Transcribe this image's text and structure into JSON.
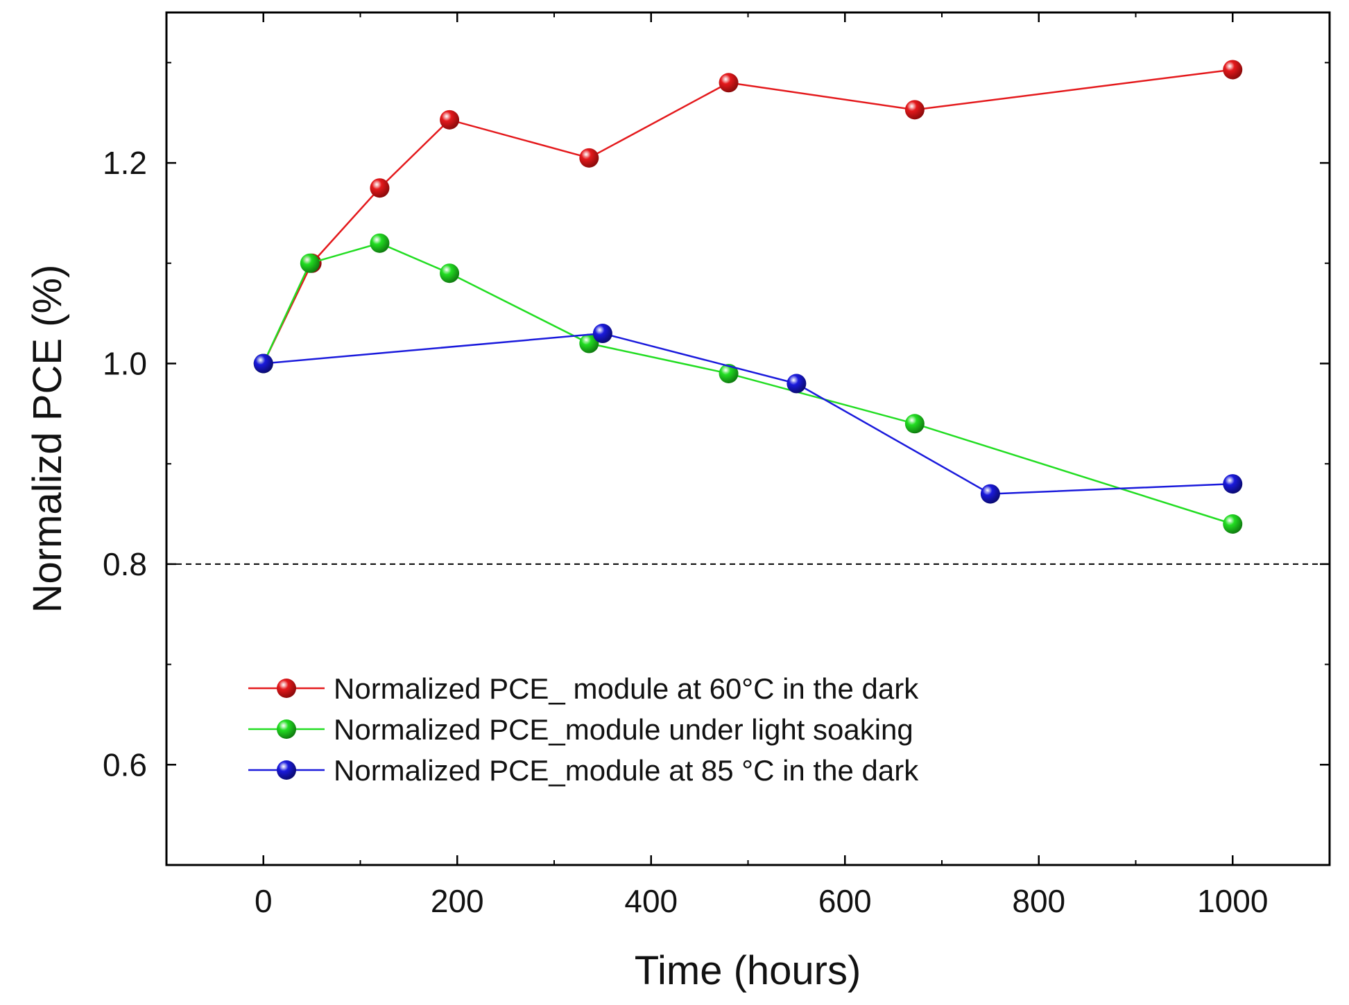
{
  "chart_data": {
    "type": "line",
    "title": "",
    "xlabel": "Time (hours)",
    "ylabel": "Normalizd PCE (%)",
    "xlim": [
      -100,
      1100
    ],
    "ylim": [
      0.5,
      1.35
    ],
    "x_ticks": [
      0,
      200,
      400,
      600,
      800,
      1000
    ],
    "x_tick_labels": [
      "0",
      "200",
      "400",
      "600",
      "800",
      "1000"
    ],
    "y_ticks": [
      0.6,
      0.8,
      1.0,
      1.2
    ],
    "y_tick_labels": [
      "0.6",
      "0.8",
      "1.0",
      "1.2"
    ],
    "reference_line": {
      "y": 0.8,
      "style": "dashed"
    },
    "legend_position": "lower-left",
    "series": [
      {
        "name": "Normalized PCE_ module at 60°C in the dark",
        "color": "#e4191c",
        "x": [
          0,
          50,
          120,
          192,
          336,
          480,
          672,
          1000
        ],
        "values": [
          1.0,
          1.1,
          1.175,
          1.243,
          1.205,
          1.28,
          1.253,
          1.293
        ]
      },
      {
        "name": "Normalized PCE_module under light soaking",
        "color": "#22dd22",
        "x": [
          0,
          48,
          120,
          192,
          336,
          480,
          672,
          1000
        ],
        "values": [
          1.0,
          1.1,
          1.12,
          1.09,
          1.02,
          0.99,
          0.94,
          0.84
        ]
      },
      {
        "name": "Normalized PCE_module at 85 °C in the dark",
        "color": "#1a1adc",
        "x": [
          0,
          350,
          550,
          750,
          1000
        ],
        "values": [
          1.0,
          1.03,
          0.98,
          0.87,
          0.88
        ]
      }
    ]
  }
}
